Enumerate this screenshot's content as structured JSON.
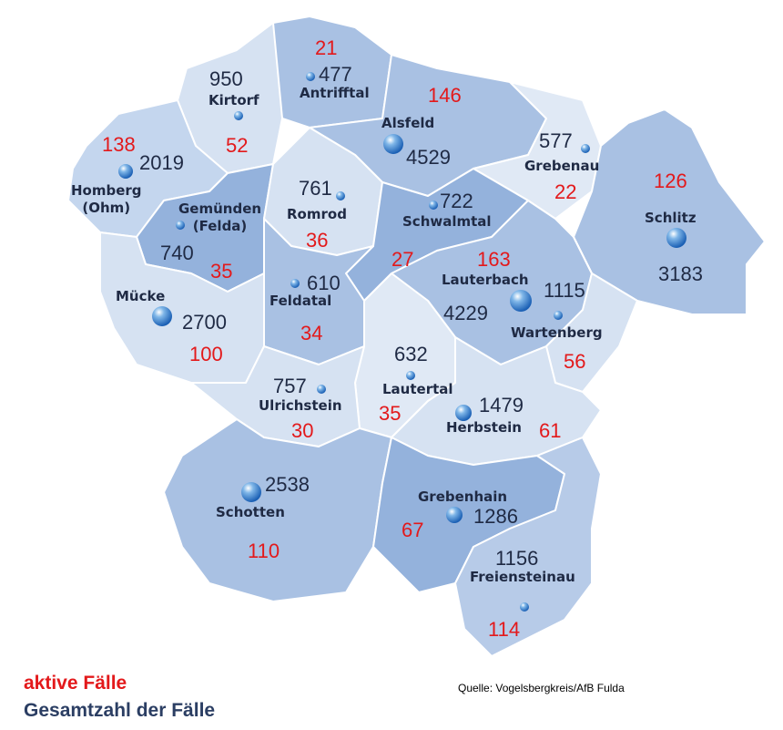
{
  "colors": {
    "active": "#e3191b",
    "total": "#1f2a44",
    "region_dark": "#a9c1e3",
    "region_light": "#d6e2f2",
    "border": "#ffffff"
  },
  "legend": {
    "active_label": "aktive Fälle",
    "total_label": "Gesamtzahl der Fälle"
  },
  "source": "Quelle: Vogelsbergkreis/AfB Fulda",
  "municipalities": [
    {
      "name": "Antrifftal",
      "total": "477",
      "active": "21"
    },
    {
      "name": "Kirtorf",
      "total": "950",
      "active": "52"
    },
    {
      "name": "Alsfeld",
      "total": "4529",
      "active": "146"
    },
    {
      "name": "Grebenau",
      "total": "577",
      "active": "22"
    },
    {
      "name": "Homberg\n(Ohm)",
      "total": "2019",
      "active": "138"
    },
    {
      "name": "Gemünden\n(Felda)",
      "total": "740",
      "active": "35"
    },
    {
      "name": "Romrod",
      "total": "761",
      "active": "36"
    },
    {
      "name": "Schwalmtal",
      "total": "722",
      "active": "27"
    },
    {
      "name": "Schlitz",
      "total": "3183",
      "active": "126"
    },
    {
      "name": "Lauterbach",
      "total": "4229",
      "active": "163"
    },
    {
      "name": "Wartenberg",
      "total": "1115",
      "active": "56"
    },
    {
      "name": "Mücke",
      "total": "2700",
      "active": "100"
    },
    {
      "name": "Feldatal",
      "total": "610",
      "active": "34"
    },
    {
      "name": "Lautertal",
      "total": "632",
      "active": "35"
    },
    {
      "name": "Ulrichstein",
      "total": "757",
      "active": "30"
    },
    {
      "name": "Herbstein",
      "total": "1479",
      "active": "61"
    },
    {
      "name": "Schotten",
      "total": "2538",
      "active": "110"
    },
    {
      "name": "Grebenhain",
      "total": "1286",
      "active": "67"
    },
    {
      "name": "Freiensteinau",
      "total": "1156",
      "active": "114"
    }
  ]
}
